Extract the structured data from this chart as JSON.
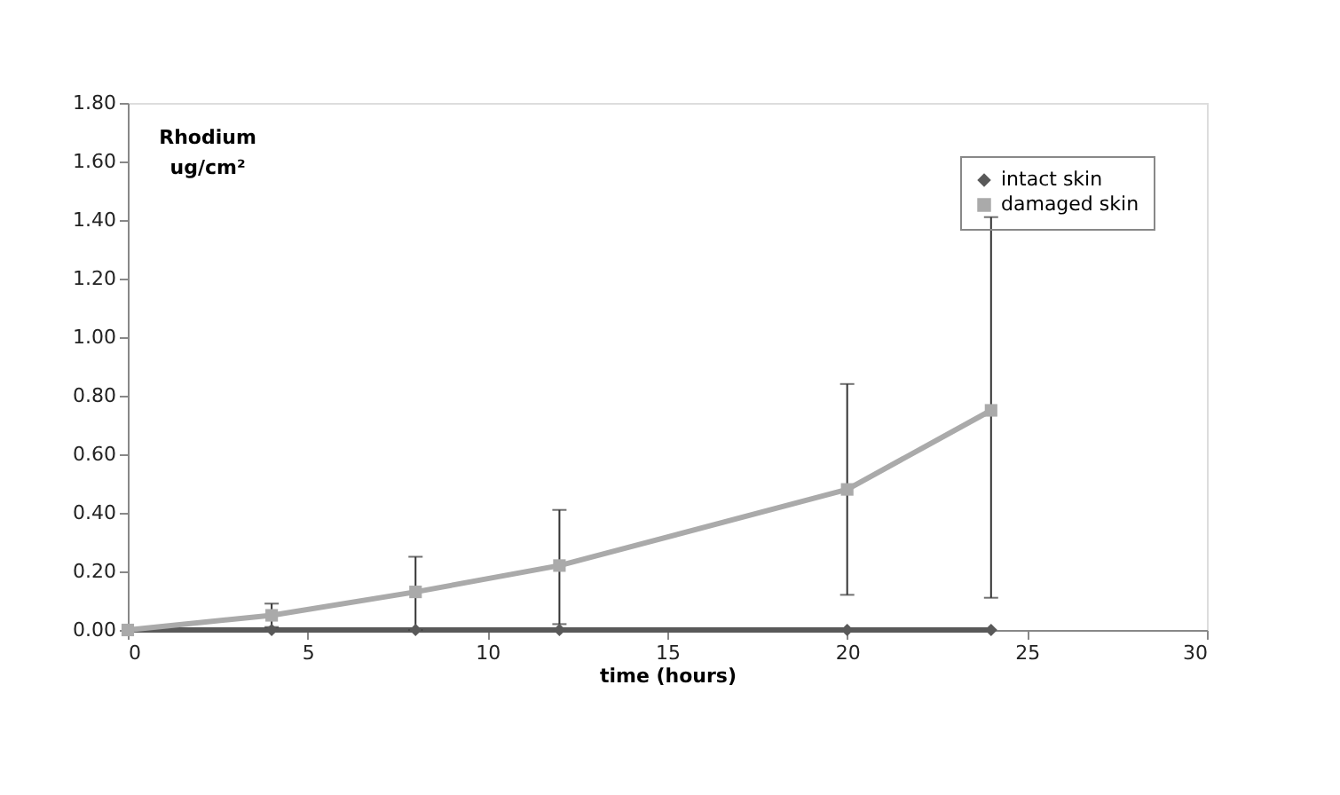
{
  "chart_data": {
    "type": "line",
    "xlabel": "time (hours)",
    "ylabel": "Rhodium ug/cm²",
    "x": [
      0,
      4,
      8,
      12,
      20,
      24
    ],
    "series": [
      {
        "name": "intact skin",
        "color": "#595959",
        "marker": "diamond",
        "values": [
          0,
          0,
          0,
          0,
          0,
          0
        ]
      },
      {
        "name": "damaged skin",
        "color": "#aaaaaa",
        "marker": "square",
        "values": [
          0,
          0.05,
          0.13,
          0.22,
          0.48,
          0.75
        ],
        "errors": [
          null,
          [
            0.01,
            0.09
          ],
          [
            0.0,
            0.25
          ],
          [
            0.02,
            0.41
          ],
          [
            0.12,
            0.84
          ],
          [
            0.11,
            1.41
          ]
        ]
      }
    ],
    "xlim": [
      0,
      30
    ],
    "xticks": [
      0,
      5,
      10,
      15,
      20,
      25,
      30
    ],
    "ylim": [
      0,
      1.8
    ],
    "yticks": [
      {
        "value": 0,
        "label": "0.00"
      },
      {
        "value": 0.2,
        "label": "0.20"
      },
      {
        "value": 0.4,
        "label": "0.40"
      },
      {
        "value": 0.6,
        "label": "0.60"
      },
      {
        "value": 0.8,
        "label": "0.80"
      },
      {
        "value": 1.0,
        "label": "1.00"
      },
      {
        "value": 1.2,
        "label": "1.20"
      },
      {
        "value": 1.4,
        "label": "1.40"
      },
      {
        "value": 1.6,
        "label": "1.60"
      },
      {
        "value": 1.8,
        "label": "1.80"
      }
    ],
    "grid": false,
    "legend": "top right",
    "line_style": "solid"
  }
}
